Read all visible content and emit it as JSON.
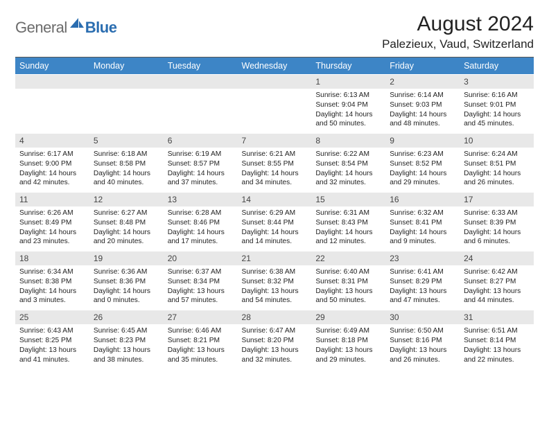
{
  "brand": {
    "part1": "General",
    "part2": "Blue"
  },
  "title": "August 2024",
  "location": "Palezieux, Vaud, Switzerland",
  "colors": {
    "header_bg": "#3d85c6",
    "header_fg": "#ffffff",
    "daynum_bg": "#e8e8e8",
    "brand_gray": "#6b6b6b",
    "brand_blue": "#2a6db0"
  },
  "typography": {
    "title_fontsize": 30,
    "location_fontsize": 17,
    "weekday_fontsize": 12.5,
    "daynum_fontsize": 12,
    "body_fontsize": 10.2
  },
  "weekdays": [
    "Sunday",
    "Monday",
    "Tuesday",
    "Wednesday",
    "Thursday",
    "Friday",
    "Saturday"
  ],
  "weeks": [
    [
      null,
      null,
      null,
      null,
      {
        "n": "1",
        "sunrise": "Sunrise: 6:13 AM",
        "sunset": "Sunset: 9:04 PM",
        "daylight": "Daylight: 14 hours and 50 minutes."
      },
      {
        "n": "2",
        "sunrise": "Sunrise: 6:14 AM",
        "sunset": "Sunset: 9:03 PM",
        "daylight": "Daylight: 14 hours and 48 minutes."
      },
      {
        "n": "3",
        "sunrise": "Sunrise: 6:16 AM",
        "sunset": "Sunset: 9:01 PM",
        "daylight": "Daylight: 14 hours and 45 minutes."
      }
    ],
    [
      {
        "n": "4",
        "sunrise": "Sunrise: 6:17 AM",
        "sunset": "Sunset: 9:00 PM",
        "daylight": "Daylight: 14 hours and 42 minutes."
      },
      {
        "n": "5",
        "sunrise": "Sunrise: 6:18 AM",
        "sunset": "Sunset: 8:58 PM",
        "daylight": "Daylight: 14 hours and 40 minutes."
      },
      {
        "n": "6",
        "sunrise": "Sunrise: 6:19 AM",
        "sunset": "Sunset: 8:57 PM",
        "daylight": "Daylight: 14 hours and 37 minutes."
      },
      {
        "n": "7",
        "sunrise": "Sunrise: 6:21 AM",
        "sunset": "Sunset: 8:55 PM",
        "daylight": "Daylight: 14 hours and 34 minutes."
      },
      {
        "n": "8",
        "sunrise": "Sunrise: 6:22 AM",
        "sunset": "Sunset: 8:54 PM",
        "daylight": "Daylight: 14 hours and 32 minutes."
      },
      {
        "n": "9",
        "sunrise": "Sunrise: 6:23 AM",
        "sunset": "Sunset: 8:52 PM",
        "daylight": "Daylight: 14 hours and 29 minutes."
      },
      {
        "n": "10",
        "sunrise": "Sunrise: 6:24 AM",
        "sunset": "Sunset: 8:51 PM",
        "daylight": "Daylight: 14 hours and 26 minutes."
      }
    ],
    [
      {
        "n": "11",
        "sunrise": "Sunrise: 6:26 AM",
        "sunset": "Sunset: 8:49 PM",
        "daylight": "Daylight: 14 hours and 23 minutes."
      },
      {
        "n": "12",
        "sunrise": "Sunrise: 6:27 AM",
        "sunset": "Sunset: 8:48 PM",
        "daylight": "Daylight: 14 hours and 20 minutes."
      },
      {
        "n": "13",
        "sunrise": "Sunrise: 6:28 AM",
        "sunset": "Sunset: 8:46 PM",
        "daylight": "Daylight: 14 hours and 17 minutes."
      },
      {
        "n": "14",
        "sunrise": "Sunrise: 6:29 AM",
        "sunset": "Sunset: 8:44 PM",
        "daylight": "Daylight: 14 hours and 14 minutes."
      },
      {
        "n": "15",
        "sunrise": "Sunrise: 6:31 AM",
        "sunset": "Sunset: 8:43 PM",
        "daylight": "Daylight: 14 hours and 12 minutes."
      },
      {
        "n": "16",
        "sunrise": "Sunrise: 6:32 AM",
        "sunset": "Sunset: 8:41 PM",
        "daylight": "Daylight: 14 hours and 9 minutes."
      },
      {
        "n": "17",
        "sunrise": "Sunrise: 6:33 AM",
        "sunset": "Sunset: 8:39 PM",
        "daylight": "Daylight: 14 hours and 6 minutes."
      }
    ],
    [
      {
        "n": "18",
        "sunrise": "Sunrise: 6:34 AM",
        "sunset": "Sunset: 8:38 PM",
        "daylight": "Daylight: 14 hours and 3 minutes."
      },
      {
        "n": "19",
        "sunrise": "Sunrise: 6:36 AM",
        "sunset": "Sunset: 8:36 PM",
        "daylight": "Daylight: 14 hours and 0 minutes."
      },
      {
        "n": "20",
        "sunrise": "Sunrise: 6:37 AM",
        "sunset": "Sunset: 8:34 PM",
        "daylight": "Daylight: 13 hours and 57 minutes."
      },
      {
        "n": "21",
        "sunrise": "Sunrise: 6:38 AM",
        "sunset": "Sunset: 8:32 PM",
        "daylight": "Daylight: 13 hours and 54 minutes."
      },
      {
        "n": "22",
        "sunrise": "Sunrise: 6:40 AM",
        "sunset": "Sunset: 8:31 PM",
        "daylight": "Daylight: 13 hours and 50 minutes."
      },
      {
        "n": "23",
        "sunrise": "Sunrise: 6:41 AM",
        "sunset": "Sunset: 8:29 PM",
        "daylight": "Daylight: 13 hours and 47 minutes."
      },
      {
        "n": "24",
        "sunrise": "Sunrise: 6:42 AM",
        "sunset": "Sunset: 8:27 PM",
        "daylight": "Daylight: 13 hours and 44 minutes."
      }
    ],
    [
      {
        "n": "25",
        "sunrise": "Sunrise: 6:43 AM",
        "sunset": "Sunset: 8:25 PM",
        "daylight": "Daylight: 13 hours and 41 minutes."
      },
      {
        "n": "26",
        "sunrise": "Sunrise: 6:45 AM",
        "sunset": "Sunset: 8:23 PM",
        "daylight": "Daylight: 13 hours and 38 minutes."
      },
      {
        "n": "27",
        "sunrise": "Sunrise: 6:46 AM",
        "sunset": "Sunset: 8:21 PM",
        "daylight": "Daylight: 13 hours and 35 minutes."
      },
      {
        "n": "28",
        "sunrise": "Sunrise: 6:47 AM",
        "sunset": "Sunset: 8:20 PM",
        "daylight": "Daylight: 13 hours and 32 minutes."
      },
      {
        "n": "29",
        "sunrise": "Sunrise: 6:49 AM",
        "sunset": "Sunset: 8:18 PM",
        "daylight": "Daylight: 13 hours and 29 minutes."
      },
      {
        "n": "30",
        "sunrise": "Sunrise: 6:50 AM",
        "sunset": "Sunset: 8:16 PM",
        "daylight": "Daylight: 13 hours and 26 minutes."
      },
      {
        "n": "31",
        "sunrise": "Sunrise: 6:51 AM",
        "sunset": "Sunset: 8:14 PM",
        "daylight": "Daylight: 13 hours and 22 minutes."
      }
    ]
  ]
}
